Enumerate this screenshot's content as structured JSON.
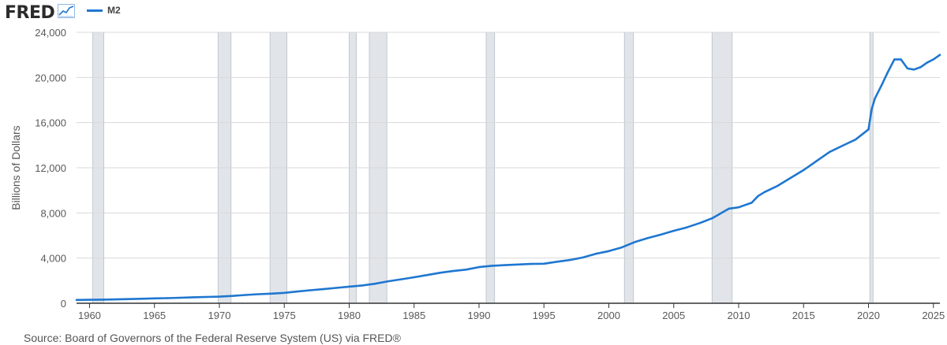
{
  "header": {
    "brand": "FRED",
    "brand_icon": "line-chart-icon",
    "legend_label": "M2"
  },
  "colors": {
    "series": "#1f77d0",
    "recession": "#e1e5ea",
    "grid": "#d8d8d8",
    "axis": "#333333",
    "text": "#595959"
  },
  "footer": {
    "source": "Source: Board of Governors of the Federal Reserve System (US) via FRED®"
  },
  "chart_data": {
    "type": "line",
    "title": "",
    "xlabel": "",
    "ylabel": "Billions of Dollars",
    "xlim": [
      1959,
      2025.5
    ],
    "ylim": [
      0,
      24000
    ],
    "yticks": [
      0,
      4000,
      8000,
      12000,
      16000,
      20000,
      24000
    ],
    "ytick_labels": [
      "0",
      "4,000",
      "8,000",
      "12,000",
      "16,000",
      "20,000",
      "24,000"
    ],
    "xticks": [
      1960,
      1965,
      1970,
      1975,
      1980,
      1985,
      1990,
      1995,
      2000,
      2005,
      2010,
      2015,
      2020,
      2025
    ],
    "xtick_labels": [
      "1960",
      "1965",
      "1970",
      "1975",
      "1980",
      "1985",
      "1990",
      "1995",
      "2000",
      "2005",
      "2010",
      "2015",
      "2020",
      "2025"
    ],
    "grid": true,
    "legend_position": "top-left",
    "recessions": [
      [
        1960.25,
        1961.1
      ],
      [
        1969.9,
        1970.9
      ],
      [
        1973.9,
        1975.2
      ],
      [
        1980.0,
        1980.55
      ],
      [
        1981.55,
        1982.9
      ],
      [
        1990.55,
        1991.2
      ],
      [
        2001.2,
        2001.9
      ],
      [
        2007.95,
        2009.5
      ],
      [
        2020.1,
        2020.35
      ]
    ],
    "series": [
      {
        "name": "M2",
        "points": [
          [
            1959.0,
            290
          ],
          [
            1960.0,
            305
          ],
          [
            1961.0,
            320
          ],
          [
            1962.0,
            345
          ],
          [
            1963.0,
            370
          ],
          [
            1964.0,
            400
          ],
          [
            1965.0,
            430
          ],
          [
            1966.0,
            455
          ],
          [
            1967.0,
            490
          ],
          [
            1968.0,
            530
          ],
          [
            1969.0,
            560
          ],
          [
            1970.0,
            585
          ],
          [
            1971.0,
            650
          ],
          [
            1972.0,
            730
          ],
          [
            1973.0,
            800
          ],
          [
            1974.0,
            850
          ],
          [
            1975.0,
            920
          ],
          [
            1976.0,
            1040
          ],
          [
            1977.0,
            1150
          ],
          [
            1978.0,
            1250
          ],
          [
            1979.0,
            1360
          ],
          [
            1980.0,
            1470
          ],
          [
            1981.0,
            1580
          ],
          [
            1982.0,
            1730
          ],
          [
            1983.0,
            1950
          ],
          [
            1984.0,
            2120
          ],
          [
            1985.0,
            2300
          ],
          [
            1986.0,
            2500
          ],
          [
            1987.0,
            2700
          ],
          [
            1988.0,
            2850
          ],
          [
            1989.0,
            2980
          ],
          [
            1990.0,
            3200
          ],
          [
            1991.0,
            3320
          ],
          [
            1992.0,
            3380
          ],
          [
            1993.0,
            3430
          ],
          [
            1994.0,
            3480
          ],
          [
            1995.0,
            3500
          ],
          [
            1996.0,
            3680
          ],
          [
            1997.0,
            3830
          ],
          [
            1998.0,
            4050
          ],
          [
            1999.0,
            4380
          ],
          [
            2000.0,
            4620
          ],
          [
            2001.0,
            4950
          ],
          [
            2002.0,
            5420
          ],
          [
            2003.0,
            5780
          ],
          [
            2004.0,
            6080
          ],
          [
            2005.0,
            6420
          ],
          [
            2006.0,
            6720
          ],
          [
            2007.0,
            7100
          ],
          [
            2008.0,
            7550
          ],
          [
            2008.75,
            8050
          ],
          [
            2009.25,
            8380
          ],
          [
            2010.0,
            8500
          ],
          [
            2011.0,
            8900
          ],
          [
            2011.5,
            9500
          ],
          [
            2012.0,
            9850
          ],
          [
            2013.0,
            10400
          ],
          [
            2014.0,
            11100
          ],
          [
            2015.0,
            11800
          ],
          [
            2016.0,
            12600
          ],
          [
            2017.0,
            13400
          ],
          [
            2018.0,
            13950
          ],
          [
            2019.0,
            14500
          ],
          [
            2020.0,
            15400
          ],
          [
            2020.25,
            17200
          ],
          [
            2020.5,
            18150
          ],
          [
            2021.0,
            19300
          ],
          [
            2021.5,
            20500
          ],
          [
            2022.0,
            21600
          ],
          [
            2022.5,
            21600
          ],
          [
            2023.0,
            20800
          ],
          [
            2023.5,
            20700
          ],
          [
            2024.0,
            20900
          ],
          [
            2024.5,
            21300
          ],
          [
            2025.0,
            21600
          ],
          [
            2025.5,
            22000
          ]
        ]
      }
    ],
    "source": "Source: Board of Governors of the Federal Reserve System (US) via FRED®"
  }
}
